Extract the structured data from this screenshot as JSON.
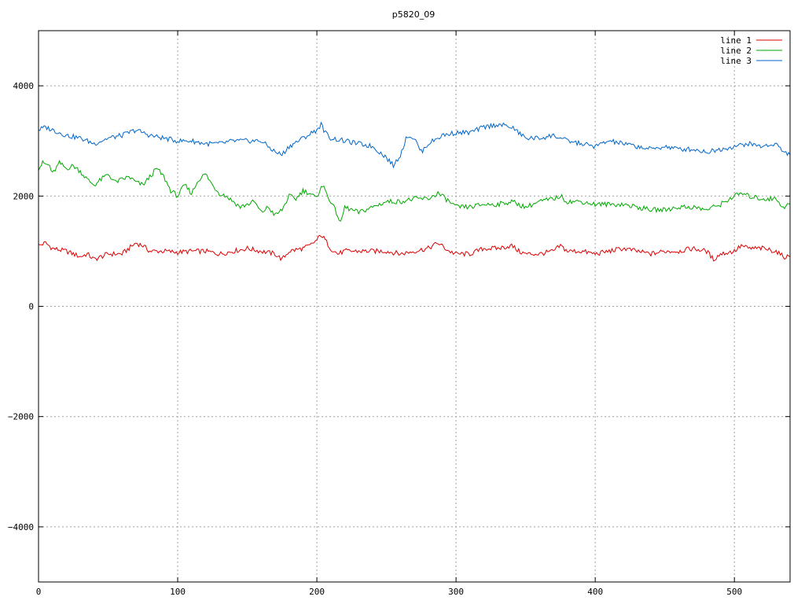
{
  "chart_data": {
    "type": "line",
    "title": "p5820_09",
    "xlabel": "",
    "ylabel": "",
    "xlim": [
      0,
      540
    ],
    "ylim": [
      -5000,
      5000
    ],
    "x_ticks": [
      0,
      100,
      200,
      300,
      400,
      500
    ],
    "y_ticks": [
      -4000,
      -2000,
      0,
      2000,
      4000
    ],
    "grid": true,
    "legend_position": "top-right",
    "series": [
      {
        "name": "line 1",
        "color": "#dd0000",
        "points": [
          [
            0,
            1100
          ],
          [
            5,
            1150
          ],
          [
            10,
            1050
          ],
          [
            20,
            1000
          ],
          [
            25,
            950
          ],
          [
            30,
            900
          ],
          [
            35,
            950
          ],
          [
            40,
            850
          ],
          [
            45,
            900
          ],
          [
            50,
            950
          ],
          [
            60,
            950
          ],
          [
            65,
            1050
          ],
          [
            70,
            1150
          ],
          [
            75,
            1100
          ],
          [
            80,
            1000
          ],
          [
            90,
            1000
          ],
          [
            100,
            980
          ],
          [
            110,
            1000
          ],
          [
            120,
            1000
          ],
          [
            130,
            950
          ],
          [
            140,
            1000
          ],
          [
            150,
            1050
          ],
          [
            160,
            1000
          ],
          [
            170,
            950
          ],
          [
            175,
            850
          ],
          [
            180,
            1000
          ],
          [
            190,
            1050
          ],
          [
            195,
            1100
          ],
          [
            200,
            1200
          ],
          [
            203,
            1300
          ],
          [
            206,
            1200
          ],
          [
            210,
            1050
          ],
          [
            215,
            950
          ],
          [
            220,
            1000
          ],
          [
            230,
            1000
          ],
          [
            240,
            1000
          ],
          [
            250,
            1000
          ],
          [
            260,
            950
          ],
          [
            270,
            1000
          ],
          [
            280,
            1050
          ],
          [
            287,
            1150
          ],
          [
            295,
            1000
          ],
          [
            300,
            950
          ],
          [
            310,
            950
          ],
          [
            320,
            1050
          ],
          [
            330,
            1050
          ],
          [
            340,
            1100
          ],
          [
            345,
            1000
          ],
          [
            350,
            950
          ],
          [
            360,
            950
          ],
          [
            370,
            1000
          ],
          [
            375,
            1100
          ],
          [
            380,
            1000
          ],
          [
            390,
            1000
          ],
          [
            400,
            950
          ],
          [
            410,
            1000
          ],
          [
            420,
            1050
          ],
          [
            430,
            1000
          ],
          [
            440,
            950
          ],
          [
            450,
            1000
          ],
          [
            460,
            1000
          ],
          [
            470,
            1050
          ],
          [
            480,
            1000
          ],
          [
            485,
            850
          ],
          [
            490,
            950
          ],
          [
            500,
            1000
          ],
          [
            505,
            1100
          ],
          [
            510,
            1050
          ],
          [
            520,
            1050
          ],
          [
            530,
            1000
          ],
          [
            535,
            900
          ],
          [
            540,
            900
          ]
        ]
      },
      {
        "name": "line 2",
        "color": "#00aa00",
        "points": [
          [
            0,
            2500
          ],
          [
            3,
            2600
          ],
          [
            8,
            2550
          ],
          [
            10,
            2400
          ],
          [
            15,
            2600
          ],
          [
            20,
            2500
          ],
          [
            25,
            2550
          ],
          [
            30,
            2450
          ],
          [
            35,
            2300
          ],
          [
            40,
            2200
          ],
          [
            45,
            2300
          ],
          [
            50,
            2400
          ],
          [
            55,
            2250
          ],
          [
            60,
            2300
          ],
          [
            65,
            2350
          ],
          [
            70,
            2250
          ],
          [
            75,
            2200
          ],
          [
            80,
            2350
          ],
          [
            85,
            2500
          ],
          [
            90,
            2350
          ],
          [
            95,
            2100
          ],
          [
            100,
            2000
          ],
          [
            105,
            2200
          ],
          [
            110,
            2050
          ],
          [
            115,
            2300
          ],
          [
            120,
            2400
          ],
          [
            125,
            2200
          ],
          [
            130,
            2050
          ],
          [
            135,
            2000
          ],
          [
            140,
            1900
          ],
          [
            145,
            1800
          ],
          [
            150,
            1850
          ],
          [
            155,
            1900
          ],
          [
            160,
            1700
          ],
          [
            165,
            1800
          ],
          [
            170,
            1650
          ],
          [
            175,
            1750
          ],
          [
            180,
            2000
          ],
          [
            185,
            1950
          ],
          [
            190,
            2100
          ],
          [
            195,
            2050
          ],
          [
            200,
            1950
          ],
          [
            203,
            2200
          ],
          [
            205,
            2150
          ],
          [
            210,
            1900
          ],
          [
            215,
            1650
          ],
          [
            217,
            1500
          ],
          [
            220,
            1800
          ],
          [
            230,
            1700
          ],
          [
            240,
            1800
          ],
          [
            250,
            1900
          ],
          [
            260,
            1900
          ],
          [
            270,
            1950
          ],
          [
            280,
            1950
          ],
          [
            287,
            2050
          ],
          [
            290,
            2000
          ],
          [
            300,
            1800
          ],
          [
            310,
            1800
          ],
          [
            320,
            1850
          ],
          [
            330,
            1850
          ],
          [
            340,
            1900
          ],
          [
            345,
            1850
          ],
          [
            350,
            1800
          ],
          [
            360,
            1900
          ],
          [
            370,
            1950
          ],
          [
            375,
            2000
          ],
          [
            380,
            1900
          ],
          [
            390,
            1900
          ],
          [
            400,
            1850
          ],
          [
            410,
            1850
          ],
          [
            420,
            1850
          ],
          [
            430,
            1800
          ],
          [
            440,
            1750
          ],
          [
            450,
            1750
          ],
          [
            460,
            1800
          ],
          [
            470,
            1800
          ],
          [
            480,
            1750
          ],
          [
            490,
            1850
          ],
          [
            500,
            2000
          ],
          [
            505,
            2050
          ],
          [
            510,
            2000
          ],
          [
            520,
            1950
          ],
          [
            530,
            1950
          ],
          [
            535,
            1800
          ],
          [
            540,
            1850
          ]
        ]
      },
      {
        "name": "line 3",
        "color": "#0066cc",
        "points": [
          [
            0,
            3200
          ],
          [
            5,
            3250
          ],
          [
            10,
            3200
          ],
          [
            20,
            3100
          ],
          [
            30,
            3050
          ],
          [
            40,
            2950
          ],
          [
            50,
            3050
          ],
          [
            60,
            3100
          ],
          [
            70,
            3200
          ],
          [
            80,
            3100
          ],
          [
            90,
            3050
          ],
          [
            100,
            3000
          ],
          [
            110,
            3000
          ],
          [
            120,
            2950
          ],
          [
            130,
            2950
          ],
          [
            140,
            3000
          ],
          [
            150,
            3000
          ],
          [
            160,
            3000
          ],
          [
            170,
            2800
          ],
          [
            175,
            2750
          ],
          [
            180,
            2900
          ],
          [
            190,
            3050
          ],
          [
            200,
            3200
          ],
          [
            203,
            3300
          ],
          [
            206,
            3150
          ],
          [
            210,
            3050
          ],
          [
            220,
            3000
          ],
          [
            230,
            2950
          ],
          [
            240,
            2900
          ],
          [
            250,
            2700
          ],
          [
            255,
            2550
          ],
          [
            260,
            2750
          ],
          [
            265,
            3100
          ],
          [
            270,
            3050
          ],
          [
            275,
            2800
          ],
          [
            280,
            2950
          ],
          [
            290,
            3100
          ],
          [
            300,
            3150
          ],
          [
            310,
            3150
          ],
          [
            320,
            3250
          ],
          [
            330,
            3300
          ],
          [
            340,
            3250
          ],
          [
            345,
            3150
          ],
          [
            350,
            3050
          ],
          [
            360,
            3050
          ],
          [
            370,
            3100
          ],
          [
            380,
            3000
          ],
          [
            390,
            2950
          ],
          [
            400,
            2900
          ],
          [
            410,
            3000
          ],
          [
            420,
            2950
          ],
          [
            430,
            2900
          ],
          [
            440,
            2850
          ],
          [
            450,
            2900
          ],
          [
            460,
            2850
          ],
          [
            470,
            2850
          ],
          [
            480,
            2800
          ],
          [
            490,
            2850
          ],
          [
            500,
            2900
          ],
          [
            510,
            2950
          ],
          [
            520,
            2900
          ],
          [
            530,
            2950
          ],
          [
            535,
            2800
          ],
          [
            540,
            2750
          ]
        ]
      }
    ]
  }
}
